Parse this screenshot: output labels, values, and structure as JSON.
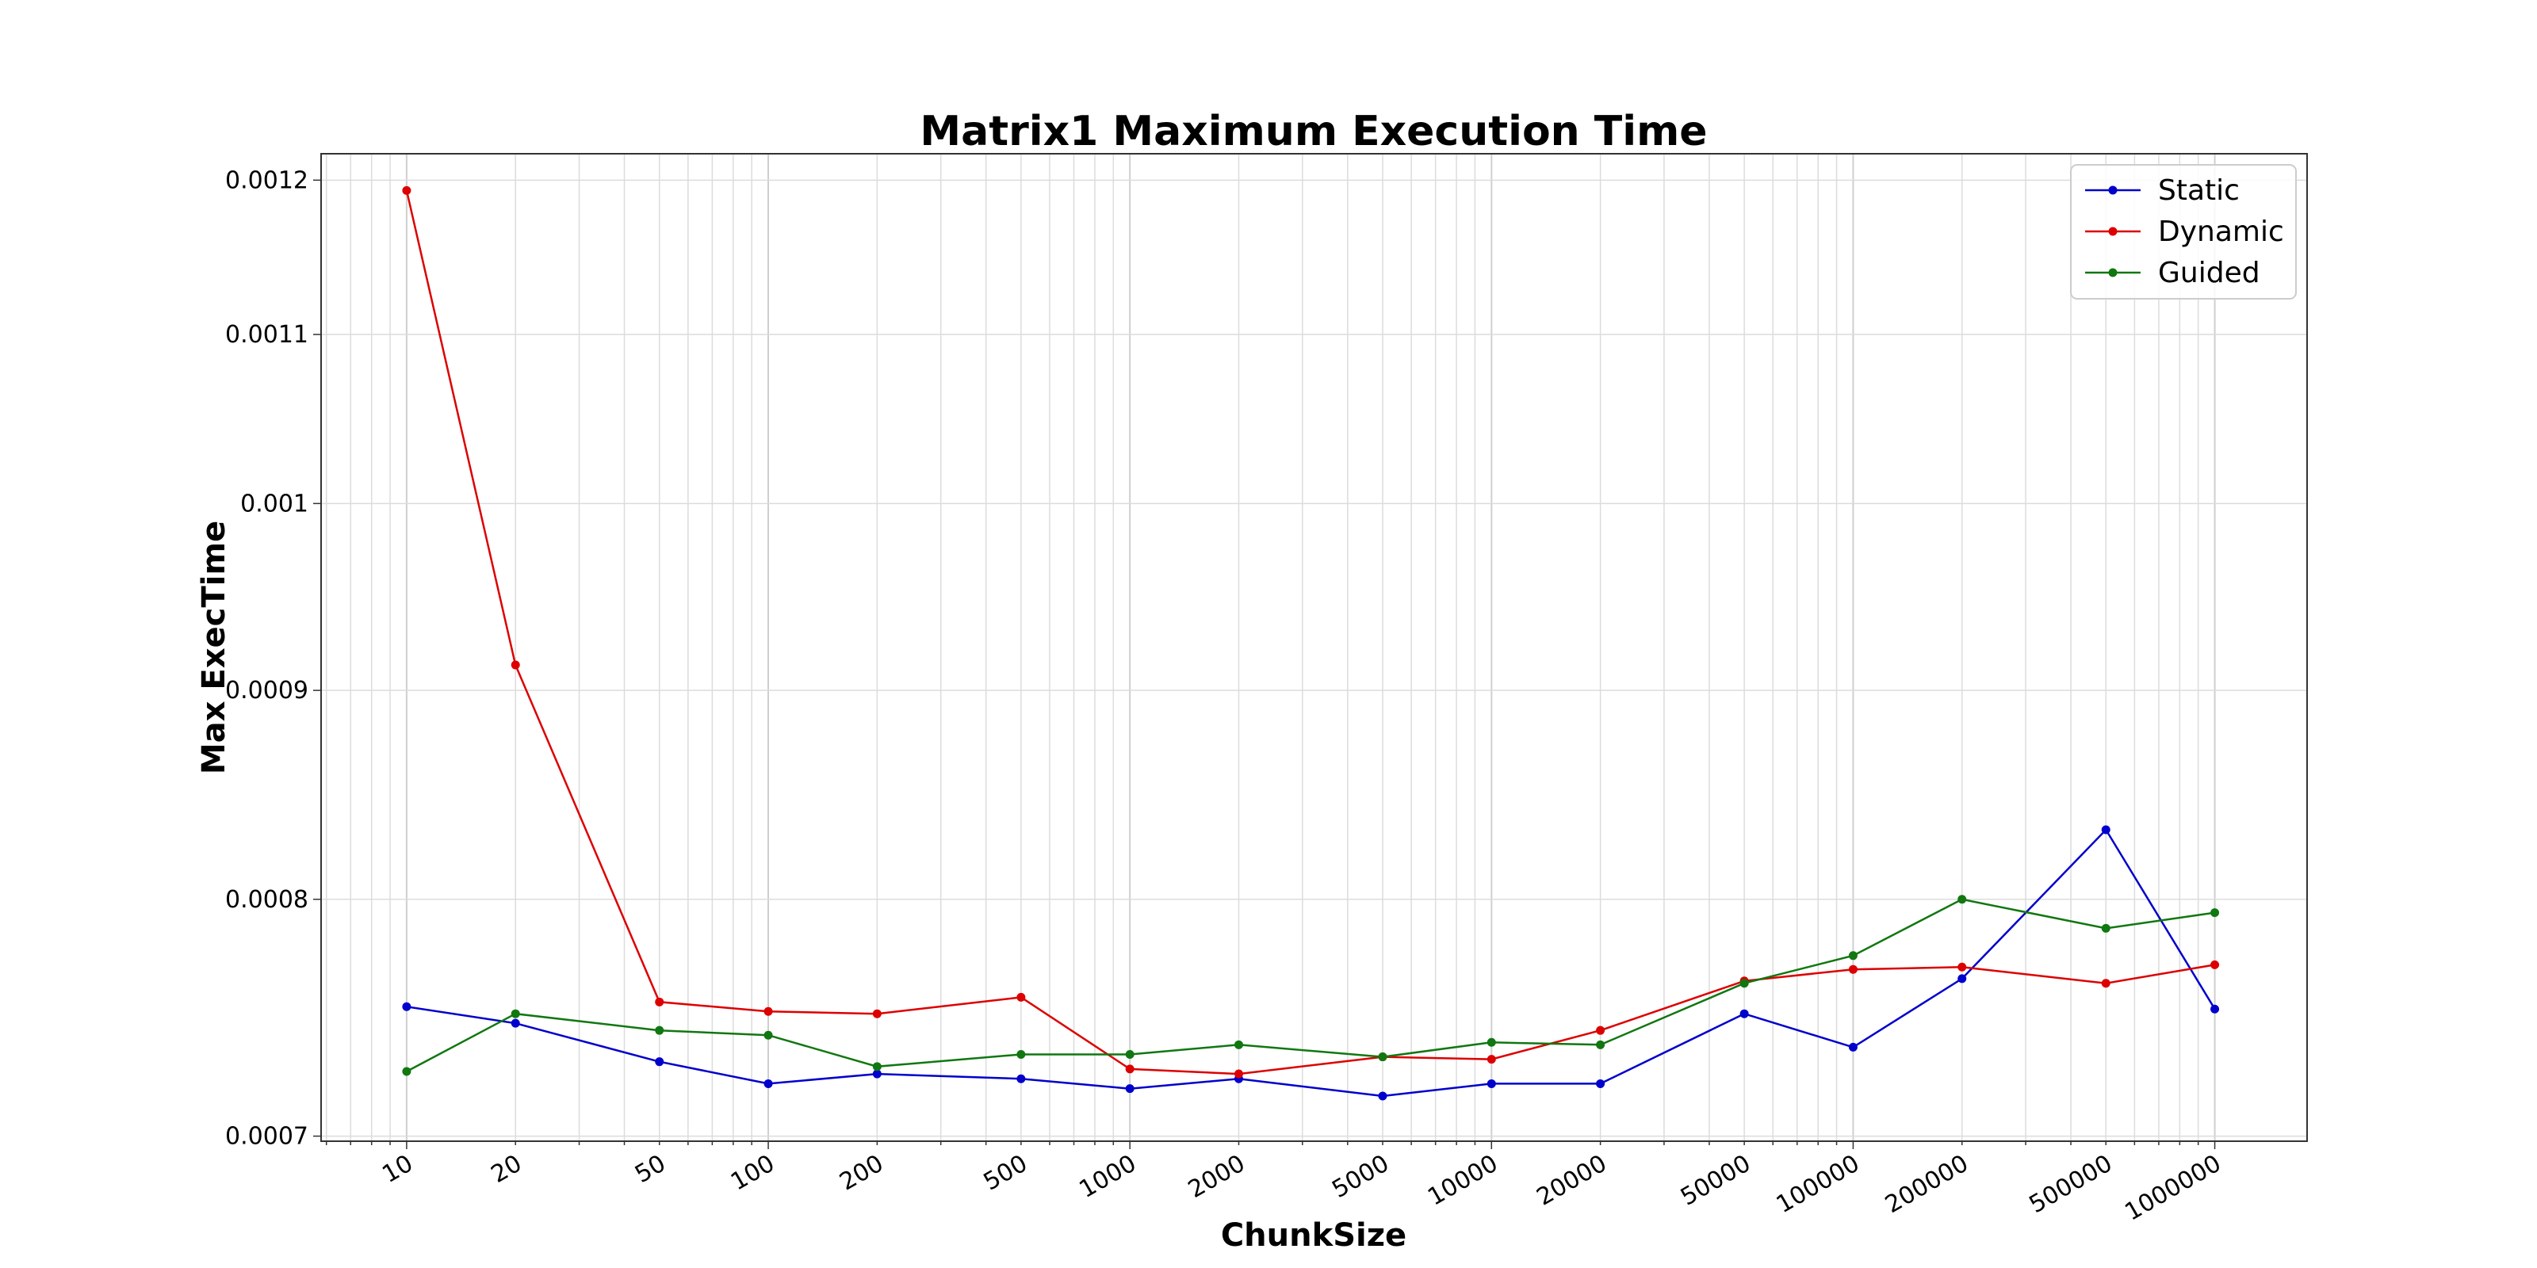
{
  "chart_data": {
    "type": "line",
    "title": "Matrix1 Maximum Execution Time",
    "xlabel": "ChunkSize",
    "ylabel": "Max ExecTime",
    "x_scale": "log",
    "y_scale": "log",
    "xlim": [
      5.8,
      1800000
    ],
    "ylim": [
      0.000698,
      0.001218
    ],
    "grid": true,
    "legend_position": "top-right",
    "x_ticks": [
      "10",
      "20",
      "50",
      "100",
      "200",
      "500",
      "1000",
      "2000",
      "5000",
      "10000",
      "20000",
      "50000",
      "100000",
      "200000",
      "500000",
      "1000000"
    ],
    "y_ticks": [
      "0.0007",
      "0.0008",
      "0.0009",
      "0.001",
      "0.0011",
      "0.0012"
    ],
    "x": [
      10,
      20,
      50,
      100,
      200,
      500,
      1000,
      2000,
      5000,
      10000,
      20000,
      50000,
      100000,
      200000,
      500000,
      1000000
    ],
    "series": [
      {
        "name": "Static",
        "color": "#0000cc",
        "values": [
          0.000753,
          0.000746,
          0.00073,
          0.000721,
          0.000725,
          0.000723,
          0.000719,
          0.000723,
          0.000716,
          0.000721,
          0.000721,
          0.00075,
          0.000736,
          0.000765,
          0.000832,
          0.000752
        ]
      },
      {
        "name": "Dynamic",
        "color": "#dd0000",
        "values": [
          0.001193,
          0.000913,
          0.000755,
          0.000751,
          0.00075,
          0.000757,
          0.000727,
          0.000725,
          0.000732,
          0.000731,
          0.000743,
          0.000764,
          0.000769,
          0.00077,
          0.000763,
          0.000771
        ]
      },
      {
        "name": "Guided",
        "color": "#117711",
        "values": [
          0.000726,
          0.00075,
          0.000743,
          0.000741,
          0.000728,
          0.000733,
          0.000733,
          0.000737,
          0.000732,
          0.000738,
          0.000737,
          0.000763,
          0.000775,
          0.0008,
          0.000787,
          0.000794
        ]
      }
    ]
  }
}
